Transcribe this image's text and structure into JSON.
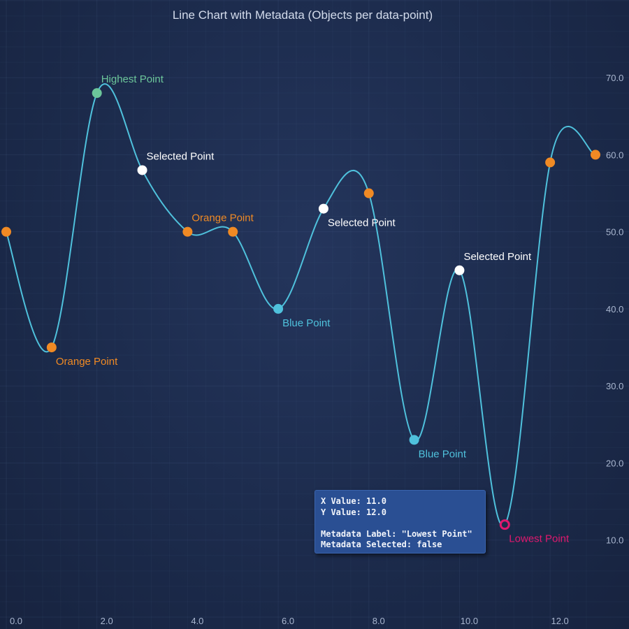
{
  "chart_data": {
    "type": "line",
    "title": "Line Chart with Metadata (Objects per data-point)",
    "xlim": [
      0,
      13
    ],
    "ylim": [
      0,
      75
    ],
    "x_ticks": [
      "0.0",
      "2.0",
      "4.0",
      "6.0",
      "8.0",
      "10.0",
      "12.0"
    ],
    "y_ticks": [
      "10.0",
      "20.0",
      "30.0",
      "40.0",
      "50.0",
      "60.0",
      "70.0"
    ],
    "x_axis_position": "bottom",
    "y_axis_position": "right",
    "grid": true,
    "line_color": "#4fc1dc",
    "points": [
      {
        "x": 0,
        "y": 50,
        "label": "",
        "color": "#f08a24",
        "style": "filled"
      },
      {
        "x": 1,
        "y": 35,
        "label": "Orange Point",
        "color": "#f08a24",
        "style": "filled",
        "label_pos": "below"
      },
      {
        "x": 2,
        "y": 68,
        "label": "Highest Point",
        "color": "#6cc69a",
        "style": "filled",
        "label_pos": "above"
      },
      {
        "x": 3,
        "y": 58,
        "label": "Selected Point",
        "color": "#ffffff",
        "style": "filled",
        "label_pos": "above"
      },
      {
        "x": 4,
        "y": 50,
        "label": "Orange Point",
        "color": "#f08a24",
        "style": "filled",
        "label_pos": "above"
      },
      {
        "x": 5,
        "y": 50,
        "label": "",
        "color": "#f08a24",
        "style": "filled"
      },
      {
        "x": 6,
        "y": 40,
        "label": "Blue Point",
        "color": "#4fc1dc",
        "style": "filled",
        "label_pos": "below"
      },
      {
        "x": 7,
        "y": 53,
        "label": "Selected Point",
        "color": "#ffffff",
        "style": "filled",
        "label_pos": "below"
      },
      {
        "x": 8,
        "y": 55,
        "label": "",
        "color": "#f08a24",
        "style": "filled"
      },
      {
        "x": 9,
        "y": 23,
        "label": "Blue Point",
        "color": "#4fc1dc",
        "style": "filled",
        "label_pos": "below"
      },
      {
        "x": 10,
        "y": 45,
        "label": "Selected Point",
        "color": "#ffffff",
        "style": "filled",
        "label_pos": "above"
      },
      {
        "x": 11,
        "y": 12,
        "label": "Lowest Point",
        "color": "#e0186e",
        "style": "ring",
        "label_pos": "below"
      },
      {
        "x": 12,
        "y": 59,
        "label": "",
        "color": "#f08a24",
        "style": "filled"
      },
      {
        "x": 13,
        "y": 60,
        "label": "",
        "color": "#f08a24",
        "style": "filled"
      }
    ]
  },
  "tooltip": {
    "line1": "X Value: 11.0",
    "line2": "Y Value: 12.0",
    "line3": "Metadata Label: \"Lowest Point\"",
    "line4": "Metadata Selected: false"
  }
}
